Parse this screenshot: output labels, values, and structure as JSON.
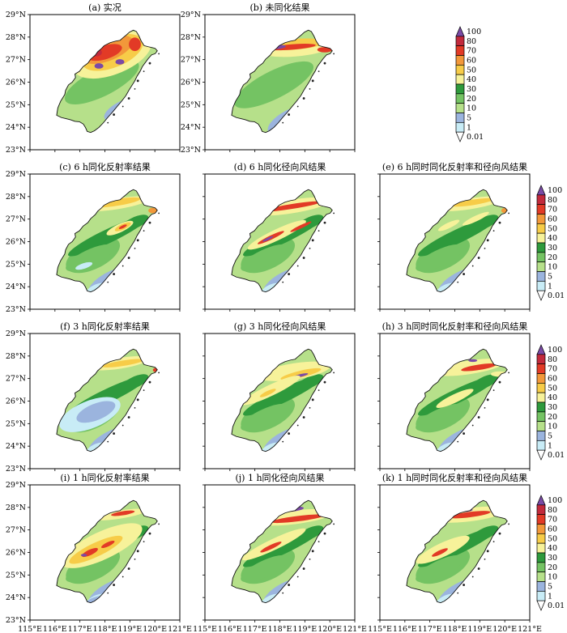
{
  "colorbar": {
    "levels": [
      "0.01",
      "1",
      "5",
      "10",
      "20",
      "30",
      "40",
      "50",
      "60",
      "70",
      "80",
      "100"
    ],
    "colors": [
      "#ffffff",
      "#c8ecf6",
      "#9bb4de",
      "#b6e08a",
      "#74c363",
      "#2e9a3c",
      "#f7f29a",
      "#f7cc48",
      "#f2983a",
      "#e23a26",
      "#c22a3c",
      "#7a4aa6"
    ]
  },
  "axes": {
    "lat_labels": [
      "23°N",
      "24°N",
      "25°N",
      "26°N",
      "27°N",
      "28°N",
      "29°N"
    ],
    "lon_labels": [
      "115°E",
      "116°E",
      "117°E",
      "118°E",
      "119°E",
      "120°E",
      "121°E"
    ]
  },
  "panels": [
    {
      "id": "a",
      "title": "(a) 实况",
      "col": 0,
      "row": 0
    },
    {
      "id": "b",
      "title": "(b) 未同化结果",
      "col": 1,
      "row": 0
    },
    {
      "id": "c",
      "title": "(c) 6 h同化反射率结果",
      "col": 0,
      "row": 1
    },
    {
      "id": "d",
      "title": "(d) 6 h同化径向风结果",
      "col": 1,
      "row": 1
    },
    {
      "id": "e",
      "title": "(e) 6 h同时同化反射率和径向风结果",
      "col": 2,
      "row": 1
    },
    {
      "id": "f",
      "title": "(f) 3 h同化反射率结果",
      "col": 0,
      "row": 2
    },
    {
      "id": "g",
      "title": "(g) 3 h同化径向风结果",
      "col": 1,
      "row": 2
    },
    {
      "id": "h",
      "title": "(h) 3 h同时同化反射率和径向风结果",
      "col": 2,
      "row": 2
    },
    {
      "id": "i",
      "title": "(i) 1 h同化反射率结果",
      "col": 0,
      "row": 3
    },
    {
      "id": "j",
      "title": "(j) 1 h同化径向风结果",
      "col": 1,
      "row": 3
    },
    {
      "id": "k",
      "title": "(k) 1 h同时同化反射率和径向风结果",
      "col": 2,
      "row": 3
    }
  ]
}
